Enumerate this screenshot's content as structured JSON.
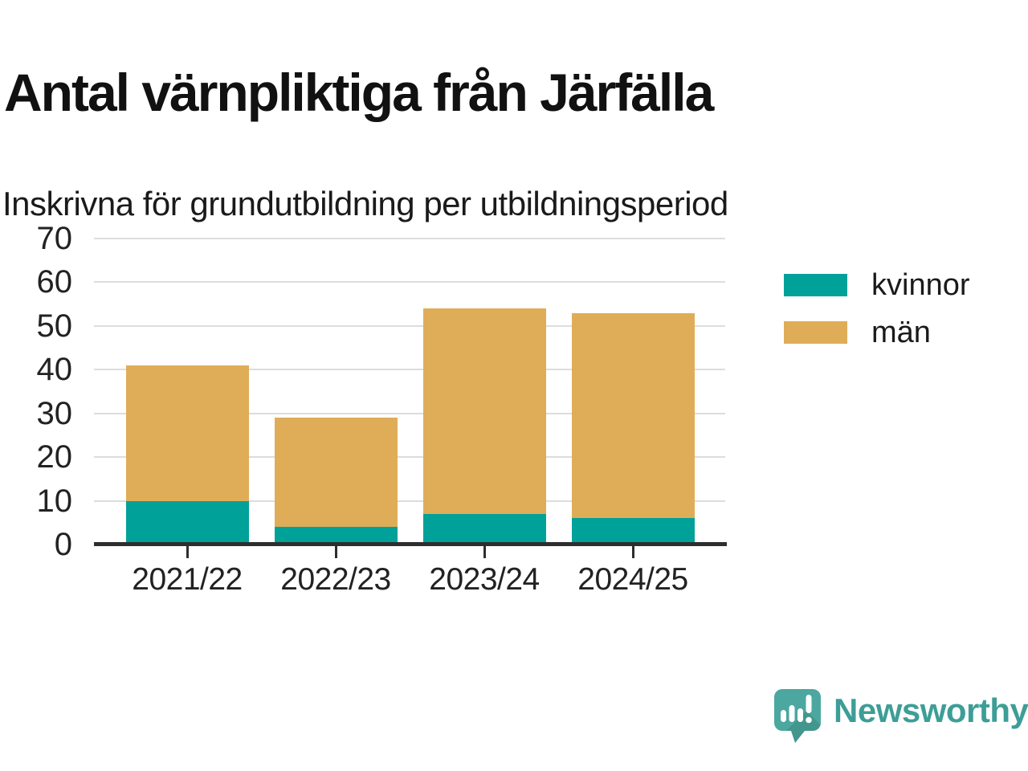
{
  "header": {
    "title": "Antal värnpliktiga från Järfälla",
    "subtitle": "Inskrivna för grundutbildning per utbildningsperiod"
  },
  "chart_data": {
    "type": "bar",
    "stacked": true,
    "title": "Antal värnpliktiga från Järfälla",
    "subtitle": "Inskrivna för grundutbildning per utbildningsperiod",
    "categories": [
      "2021/22",
      "2022/23",
      "2023/24",
      "2024/25"
    ],
    "series": [
      {
        "name": "kvinnor",
        "color": "#00a199",
        "values": [
          10,
          4,
          7,
          6
        ]
      },
      {
        "name": "män",
        "color": "#dfad57",
        "values": [
          31,
          25,
          47,
          47
        ]
      }
    ],
    "stack_totals": [
      41,
      29,
      54,
      53
    ],
    "xlabel": "",
    "ylabel": "",
    "ylim": [
      0,
      70
    ],
    "yticks": [
      0,
      10,
      20,
      30,
      40,
      50,
      60,
      70
    ],
    "grid": "horizontal",
    "legend_position": "right"
  },
  "footer": {
    "brand": "Newsworthy"
  },
  "colors": {
    "accent_teal": "#00a199",
    "accent_gold": "#dfad57",
    "axis": "#2e2e2e",
    "gridline": "#dddddd",
    "logo_bubble": "#4ba79f",
    "logo_text": "#3d9e97"
  }
}
